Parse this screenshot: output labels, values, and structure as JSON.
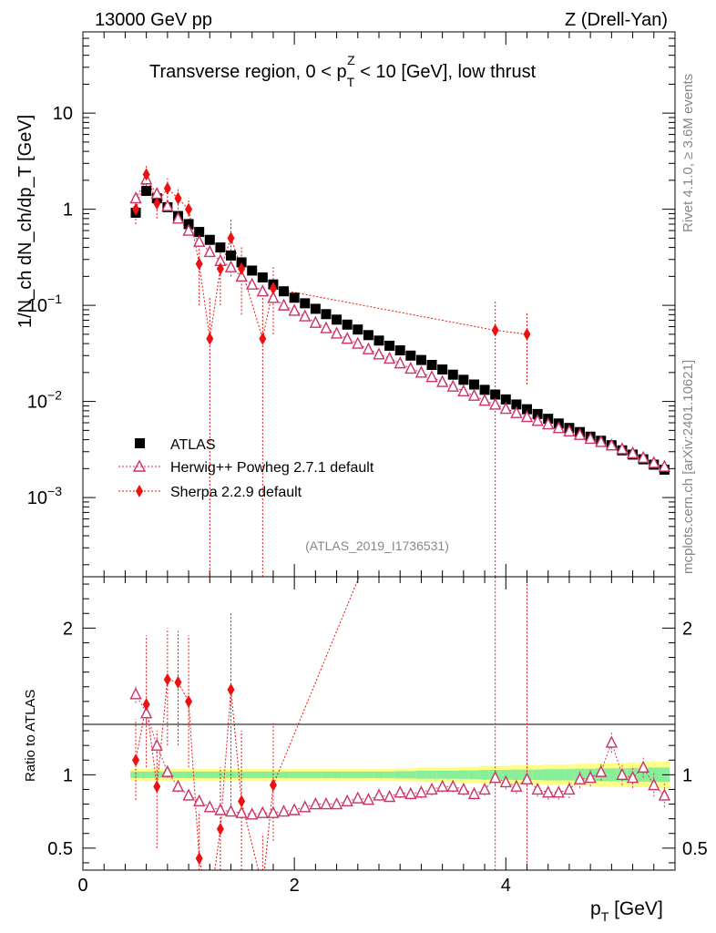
{
  "header": {
    "left": "13000 GeV pp",
    "right": "Z (Drell-Yan)"
  },
  "side_text": {
    "rivet": "Rivet 4.1.0, ≥ 3.6M events",
    "mcplots": "mcplots.cern.ch [arXiv:2401.10621]"
  },
  "chart_data": {
    "type": "scatter",
    "title": "Transverse region, 0 < p_T^Z < 10 [GeV], low thrust",
    "title_parts": {
      "a": "Transverse region, 0 < p",
      "sub": "T",
      "sup": "Z",
      "b": " < 10 [GeV], low thrust"
    },
    "analysis_id": "(ATLAS_2019_I1736531)",
    "xlabel": "p_T [GeV]",
    "xlabel_parts": {
      "main": "p",
      "sub": "T",
      "unit": " [GeV]"
    },
    "ylabel": "1/N_ch dN_ch/dp_T [GeV]",
    "ratio_ylabel": "Ratio to ATLAS",
    "xlim": [
      0,
      5.6
    ],
    "ylim": [
      0.00015,
      70
    ],
    "ratio_ylim": [
      0.35,
      2.35
    ],
    "yscale": "log",
    "x_ticks": [
      0,
      2,
      4
    ],
    "x_tick_labels": [
      "0",
      "2",
      "4"
    ],
    "y_tick_labels": [
      {
        "value": 0.001,
        "base": "10",
        "exp": "−3"
      },
      {
        "value": 0.01,
        "base": "10",
        "exp": "−2"
      },
      {
        "value": 0.1,
        "base": "10",
        "exp": "−1"
      },
      {
        "value": 1,
        "base": "1",
        "exp": ""
      },
      {
        "value": 10,
        "base": "10",
        "exp": ""
      }
    ],
    "ratio_ticks": [
      {
        "value": 0.5,
        "label": "0.5"
      },
      {
        "value": 1,
        "label": "1"
      },
      {
        "value": 2,
        "label": "2"
      }
    ],
    "legend_position": "bottom-left",
    "x": [
      0.5,
      0.6,
      0.7,
      0.8,
      0.9,
      1.0,
      1.1,
      1.2,
      1.3,
      1.4,
      1.5,
      1.6,
      1.7,
      1.8,
      1.9,
      2.0,
      2.1,
      2.2,
      2.3,
      2.4,
      2.5,
      2.6,
      2.7,
      2.8,
      2.9,
      3.0,
      3.1,
      3.2,
      3.3,
      3.4,
      3.5,
      3.6,
      3.7,
      3.8,
      3.9,
      4.0,
      4.1,
      4.2,
      4.3,
      4.4,
      4.5,
      4.6,
      4.7,
      4.8,
      4.9,
      5.0,
      5.1,
      5.2,
      5.3,
      5.4,
      5.5
    ],
    "series": [
      {
        "name": "ATLAS",
        "style": "data",
        "color": "#000000",
        "values": [
          0.92,
          1.55,
          1.3,
          1.05,
          0.85,
          0.7,
          0.58,
          0.48,
          0.4,
          0.33,
          0.28,
          0.23,
          0.195,
          0.165,
          0.14,
          0.12,
          0.105,
          0.092,
          0.081,
          0.071,
          0.063,
          0.056,
          0.049,
          0.043,
          0.038,
          0.034,
          0.03,
          0.027,
          0.024,
          0.0215,
          0.019,
          0.0168,
          0.015,
          0.0132,
          0.0118,
          0.0105,
          0.0093,
          0.0083,
          0.0074,
          0.0066,
          0.0059,
          0.0053,
          0.0048,
          0.0043,
          0.0039,
          0.0035,
          0.0031,
          0.0028,
          0.0025,
          0.0022,
          0.00195
        ],
        "ratio_band": [
          0.04,
          0.04,
          0.04,
          0.04,
          0.04,
          0.04,
          0.04,
          0.04,
          0.04,
          0.04,
          0.04,
          0.04,
          0.04,
          0.04,
          0.04,
          0.04,
          0.04,
          0.04,
          0.04,
          0.04,
          0.04,
          0.04,
          0.04,
          0.04,
          0.04,
          0.045,
          0.045,
          0.05,
          0.05,
          0.05,
          0.05,
          0.055,
          0.055,
          0.06,
          0.06,
          0.06,
          0.065,
          0.065,
          0.065,
          0.07,
          0.07,
          0.07,
          0.075,
          0.075,
          0.08,
          0.08,
          0.08,
          0.085,
          0.085,
          0.09,
          0.09
        ]
      },
      {
        "name": "Herwig++ Powheg 2.7.1 default",
        "style": "triangle",
        "color": "#cc3366",
        "values": [
          1.3,
          2.05,
          1.45,
          1.08,
          0.8,
          0.6,
          0.46,
          0.36,
          0.29,
          0.25,
          0.2,
          0.165,
          0.14,
          0.12,
          0.1,
          0.088,
          0.077,
          0.066,
          0.058,
          0.051,
          0.045,
          0.04,
          0.035,
          0.031,
          0.028,
          0.025,
          0.022,
          0.02,
          0.018,
          0.016,
          0.0143,
          0.0128,
          0.0115,
          0.0102,
          0.0093,
          0.0084,
          0.0076,
          0.0069,
          0.0063,
          0.0058,
          0.0053,
          0.0049,
          0.0045,
          0.0041,
          0.0038,
          0.0035,
          0.0032,
          0.0029,
          0.0026,
          0.0023,
          0.0021
        ],
        "ratio": [
          1.55,
          1.42,
          1.2,
          1.02,
          0.92,
          0.86,
          0.82,
          0.78,
          0.76,
          0.75,
          0.74,
          0.73,
          0.74,
          0.74,
          0.75,
          0.76,
          0.78,
          0.8,
          0.8,
          0.8,
          0.82,
          0.84,
          0.83,
          0.86,
          0.85,
          0.88,
          0.87,
          0.88,
          0.9,
          0.92,
          0.92,
          0.9,
          0.87,
          0.9,
          0.98,
          0.95,
          0.92,
          0.97,
          0.9,
          0.88,
          0.88,
          0.9,
          0.97,
          0.98,
          1.02,
          1.22,
          1.0,
          0.98,
          1.05,
          0.93,
          0.86
        ],
        "ratio_err": [
          0.06,
          0.06,
          0.05,
          0.04,
          0.04,
          0.03,
          0.03,
          0.03,
          0.03,
          0.03,
          0.03,
          0.03,
          0.03,
          0.03,
          0.03,
          0.03,
          0.03,
          0.03,
          0.03,
          0.03,
          0.03,
          0.03,
          0.03,
          0.03,
          0.03,
          0.04,
          0.04,
          0.04,
          0.04,
          0.04,
          0.04,
          0.04,
          0.04,
          0.04,
          0.05,
          0.05,
          0.05,
          0.05,
          0.05,
          0.05,
          0.05,
          0.06,
          0.06,
          0.06,
          0.06,
          0.07,
          0.07,
          0.07,
          0.07,
          0.08,
          0.08
        ]
      },
      {
        "name": "Sherpa 2.2.9 default",
        "style": "diamond",
        "color": "#ee1111",
        "x": [
          0.5,
          0.6,
          0.7,
          0.8,
          0.9,
          1.0,
          1.1,
          1.2,
          1.3,
          1.4,
          1.5,
          1.7,
          1.8,
          3.9,
          4.2
        ],
        "values": [
          1.0,
          2.3,
          1.15,
          1.65,
          1.3,
          1.0,
          0.27,
          0.045,
          0.24,
          0.5,
          0.24,
          0.045,
          0.15,
          0.055,
          0.05
        ],
        "err_low": [
          0.7,
          1.6,
          0.8,
          1.2,
          1.0,
          0.7,
          0.1,
          1e-05,
          0.1,
          0.2,
          0.08,
          1e-05,
          0.05,
          1e-05,
          0.015
        ],
        "err_high": [
          1.3,
          2.9,
          1.5,
          2.1,
          1.7,
          1.3,
          0.45,
          0.12,
          0.4,
          0.8,
          0.42,
          0.12,
          0.25,
          0.11,
          0.085
        ],
        "ratio": [
          1.1,
          1.48,
          0.92,
          1.65,
          1.63,
          1.5,
          0.43,
          0.1,
          0.63,
          1.58,
          0.82,
          0.23,
          0.93,
          4.6,
          6.0
        ],
        "ratio_low": [
          0.83,
          1.05,
          0.5,
          1.2,
          1.2,
          1.05,
          0.2,
          0.1,
          0.3,
          0.72,
          0.35,
          0.1,
          0.55,
          0.1,
          0.1
        ],
        "ratio_high": [
          1.38,
          1.95,
          1.3,
          2.0,
          1.98,
          1.95,
          0.75,
          0.4,
          1.05,
          2.1,
          1.3,
          0.6,
          1.35,
          9.0,
          9.0
        ]
      }
    ]
  }
}
